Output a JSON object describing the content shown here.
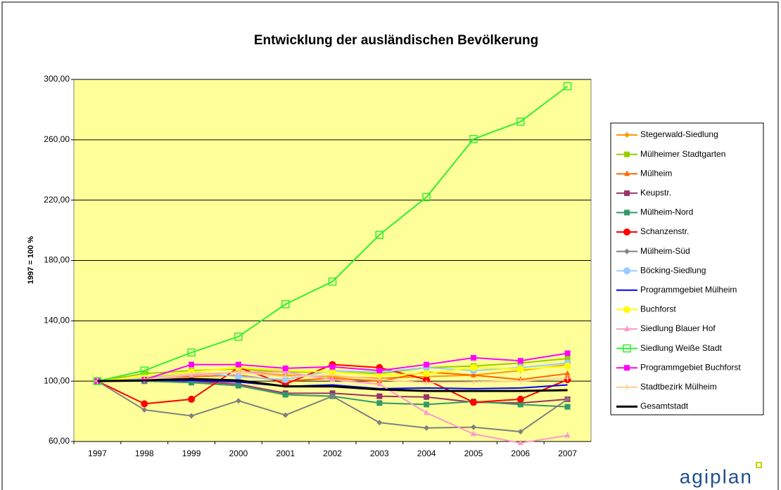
{
  "chart_data": {
    "type": "line",
    "title": "Entwicklung der ausländischen Bevölkerung",
    "y_label": "1997 = 100 %",
    "logo": "agiplan",
    "categories": [
      "1997",
      "1998",
      "1999",
      "2000",
      "2001",
      "2002",
      "2003",
      "2004",
      "2005",
      "2006",
      "2007"
    ],
    "ylim": [
      60,
      300
    ],
    "yticks": [
      {
        "value": 60,
        "label": "60,00"
      },
      {
        "value": 100,
        "label": "100,00"
      },
      {
        "value": 140,
        "label": "140,00"
      },
      {
        "value": 180,
        "label": "180,00"
      },
      {
        "value": 220,
        "label": "220,00"
      },
      {
        "value": 260,
        "label": "260,00"
      },
      {
        "value": 300,
        "label": "300,00"
      }
    ],
    "grid": true,
    "legend": "right",
    "series": [
      {
        "name": "Stegerwald-Siedlung",
        "color": "#ff9900",
        "marker": "diamond",
        "values": [
          100,
          103,
          104,
          106,
          104,
          103,
          102,
          103,
          104,
          107,
          111
        ]
      },
      {
        "name": "Mülheimer Stadtgarten",
        "color": "#99cc00",
        "marker": "square",
        "values": [
          100,
          105,
          107,
          108,
          106,
          106,
          105,
          109,
          110,
          112,
          115
        ]
      },
      {
        "name": "Mülheim",
        "color": "#ff6600",
        "marker": "triangle",
        "values": [
          100,
          102,
          103,
          104,
          100,
          102,
          100,
          106,
          104,
          101,
          105
        ]
      },
      {
        "name": "Keupstr.",
        "color": "#993366",
        "marker": "square",
        "values": [
          100,
          100,
          100,
          98,
          92,
          92,
          90,
          89.5,
          86,
          85.5,
          88
        ]
      },
      {
        "name": "Mülheim-Nord",
        "color": "#339966",
        "marker": "square",
        "values": [
          100,
          100,
          99,
          97,
          91,
          90,
          85.5,
          84.5,
          86.5,
          84.5,
          83
        ]
      },
      {
        "name": "Schanzenstr.",
        "color": "#ff0000",
        "marker": "circle",
        "values": [
          100,
          85,
          88,
          109,
          98,
          111,
          109,
          101,
          86,
          88,
          101
        ]
      },
      {
        "name": "Mülheim-Süd",
        "color": "#808080",
        "marker": "diamond",
        "values": [
          100,
          81,
          77,
          87,
          77.5,
          90,
          72.5,
          69,
          69.5,
          66.5,
          88
        ]
      },
      {
        "name": "Böcking-Siedlung",
        "color": "#99ccff",
        "marker": "circle",
        "values": [
          100,
          102,
          106,
          103,
          101,
          107,
          106,
          109,
          107,
          109,
          112
        ]
      },
      {
        "name": "Programmgebiet Mülheim",
        "color": "#0000ff",
        "marker": "none",
        "values": [
          100,
          100.5,
          100.5,
          99.5,
          96.5,
          97.5,
          95,
          95.5,
          95,
          95.5,
          97.5
        ]
      },
      {
        "name": "Buchforst",
        "color": "#ffff00",
        "marker": "circle",
        "values": [
          100,
          103,
          106,
          109,
          107,
          106,
          104,
          105,
          109,
          108,
          110
        ]
      },
      {
        "name": "Siedlung Blauer Hof",
        "color": "#ff99cc",
        "marker": "triangle",
        "values": [
          100,
          101,
          104,
          106,
          106,
          101,
          98,
          79,
          65,
          59,
          64
        ]
      },
      {
        "name": "Siedlung Weiße Stadt",
        "color": "#33ee33",
        "marker": "open-square",
        "values": [
          100,
          107,
          119,
          129.5,
          151,
          166,
          197,
          222,
          260.5,
          272,
          295.5
        ]
      },
      {
        "name": "Programmgebiet Buchforst",
        "color": "#ff00ff",
        "marker": "square",
        "values": [
          100,
          101,
          111,
          111,
          108.5,
          109.5,
          107,
          111,
          115.5,
          113.5,
          118.5
        ]
      },
      {
        "name": "Stadtbezirk Mülheim",
        "color": "#ffcc99",
        "marker": "cross",
        "values": [
          100,
          101,
          105,
          106,
          103,
          104,
          101,
          99,
          99.5,
          100,
          102
        ]
      },
      {
        "name": "Gesamtstadt",
        "color": "#000000",
        "marker": "none",
        "width": 3,
        "values": [
          100,
          100.5,
          101.5,
          100.5,
          96.5,
          96.5,
          94.5,
          93.5,
          93.5,
          93.5,
          94
        ]
      }
    ]
  }
}
